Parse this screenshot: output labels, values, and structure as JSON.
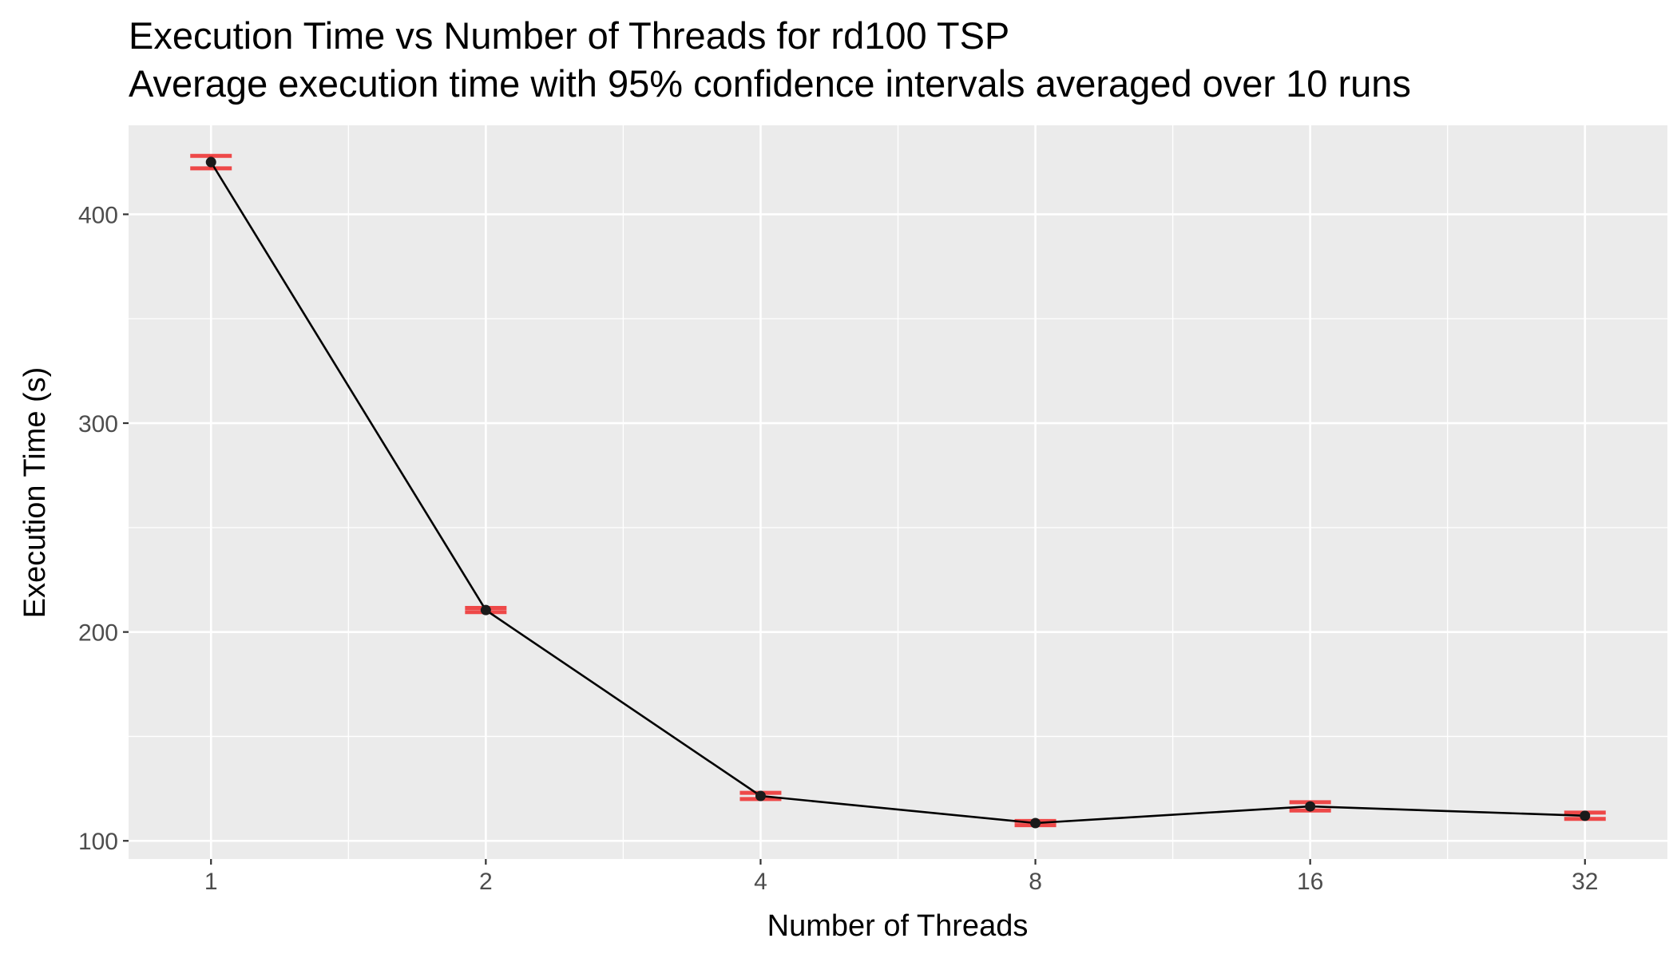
{
  "chart_data": {
    "type": "line",
    "title": "Execution Time vs Number of Threads for rd100 TSP",
    "subtitle": "Average execution time with 95% confidence intervals averaged over 10 runs",
    "xlabel": "Number of Threads",
    "ylabel": "Execution Time (s)",
    "x_scale": "log2",
    "x": [
      1,
      2,
      4,
      8,
      16,
      32
    ],
    "x_tick_labels": [
      "1",
      "2",
      "4",
      "8",
      "16",
      "32"
    ],
    "series": [
      {
        "values": [
          425,
          210.5,
          121.5,
          108.5,
          116.5,
          112
        ],
        "ci_low": [
          422,
          209.5,
          120,
          107.5,
          114.5,
          110.5
        ],
        "ci_high": [
          428,
          211.5,
          123,
          109.5,
          118.5,
          113.5
        ]
      }
    ],
    "y_ticks": [
      100,
      200,
      300,
      400
    ],
    "y_tick_labels": [
      "100",
      "200",
      "300",
      "400"
    ],
    "ylim": [
      91.3,
      442.6
    ],
    "grid": true,
    "colors": {
      "line": "#000000",
      "point": "#1a1a1a",
      "error_bar": "#ee2b2b",
      "panel_bg": "#ebebeb",
      "grid": "#ffffff"
    }
  }
}
